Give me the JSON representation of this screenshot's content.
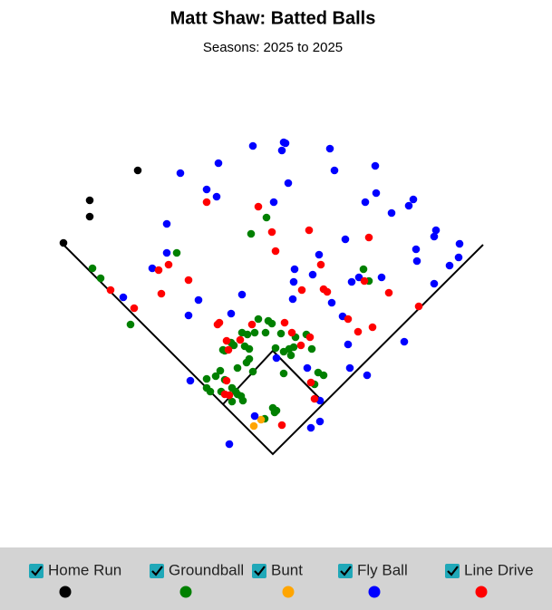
{
  "chart_data": {
    "type": "scatter",
    "title": "Matt Shaw: Batted Balls",
    "subtitle": "Seasons: 2025 to 2025",
    "xlim": [
      -301,
      303
    ],
    "ylim": [
      -100,
      440
    ],
    "series": [
      {
        "name": "Home Run",
        "color": "#000000",
        "x": [
          -149,
          -202,
          -202,
          -231
        ],
        "values": [
          312,
          279,
          261,
          232
        ]
      },
      {
        "name": "Groundball",
        "color": "#008000",
        "x": [
          -7,
          -24,
          -106,
          100,
          106,
          -199,
          -190,
          -157,
          -5,
          -1,
          -16,
          -34,
          -28,
          -46,
          -55,
          -31,
          -43,
          -8,
          -20,
          9,
          25,
          18,
          23,
          37,
          43,
          3,
          -26,
          -29,
          -39,
          -22,
          -58,
          -53,
          -63,
          -73,
          -73,
          -69,
          -57,
          -45,
          -41,
          -39,
          -35,
          -33,
          -45,
          12,
          20,
          50,
          56,
          46,
          0,
          4,
          2,
          -9,
          -53,
          -26,
          12
        ],
        "values": [
          260,
          242,
          221,
          203,
          190,
          204,
          193,
          142,
          146,
          143,
          148,
          133,
          131,
          122,
          114,
          118,
          119,
          133,
          133,
          132,
          128,
          115,
          117,
          131,
          115,
          116,
          104,
          100,
          94,
          90,
          91,
          81,
          85,
          82,
          72,
          68,
          68,
          72,
          68,
          65,
          63,
          58,
          57,
          88,
          108,
          89,
          86,
          76,
          50,
          47,
          45,
          38,
          113,
          115,
          112
        ]
      },
      {
        "name": "Bunt",
        "color": "#ffa500",
        "x": [
          -21,
          -13
        ],
        "values": [
          30,
          37
        ]
      },
      {
        "name": "Fly Ball",
        "color": "#0000ff",
        "x": [
          -22,
          12,
          14,
          10,
          63,
          -60,
          -102,
          68,
          113,
          17,
          -73,
          -62,
          1,
          114,
          102,
          155,
          150,
          131,
          -117,
          180,
          178,
          206,
          80,
          158,
          51,
          -117,
          159,
          24,
          195,
          205,
          44,
          -133,
          87,
          95,
          120,
          23,
          -165,
          -82,
          -34,
          178,
          22,
          65,
          -46,
          -93,
          77,
          83,
          145,
          85,
          104,
          -91,
          52,
          -20,
          52,
          42,
          -48,
          4,
          38
        ],
        "values": [
          339,
          343,
          342,
          334,
          336,
          320,
          309,
          312,
          317,
          298,
          291,
          283,
          277,
          287,
          277,
          280,
          273,
          265,
          253,
          246,
          239,
          231,
          236,
          225,
          219,
          221,
          212,
          203,
          207,
          216,
          197,
          204,
          189,
          194,
          194,
          189,
          172,
          169,
          175,
          187,
          170,
          166,
          154,
          152,
          151,
          120,
          123,
          94,
          86,
          80,
          58,
          41,
          35,
          28,
          10,
          105,
          94
        ]
      },
      {
        "name": "Line Drive",
        "color": "#ff0000",
        "x": [
          -16,
          -73,
          40,
          106,
          -1,
          3,
          53,
          -126,
          -115,
          -93,
          -179,
          -153,
          -123,
          32,
          56,
          60,
          101,
          128,
          161,
          83,
          110,
          -59,
          -61,
          -23,
          13,
          21,
          94,
          -51,
          -49,
          31,
          41,
          -51,
          -53,
          -48,
          46,
          42,
          10,
          -36
        ],
        "values": [
          272,
          277,
          246,
          238,
          244,
          223,
          208,
          202,
          208,
          191,
          180,
          160,
          176,
          180,
          181,
          178,
          190,
          177,
          162,
          148,
          139,
          144,
          142,
          142,
          144,
          133,
          134,
          124,
          114,
          119,
          128,
          80,
          65,
          64,
          60,
          78,
          31,
          125
        ]
      }
    ]
  }
}
